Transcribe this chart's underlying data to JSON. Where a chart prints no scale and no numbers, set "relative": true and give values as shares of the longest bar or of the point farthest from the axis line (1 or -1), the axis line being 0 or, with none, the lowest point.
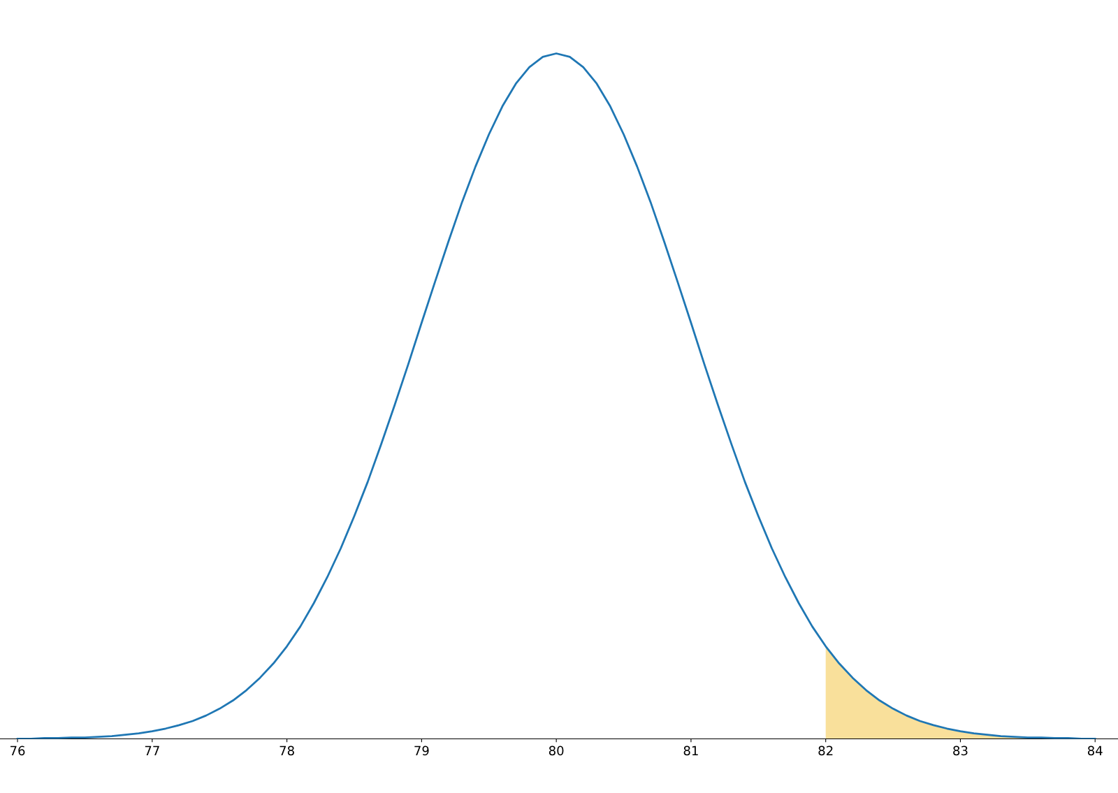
{
  "chart_data": {
    "type": "line",
    "relative": true,
    "xlim": [
      75.87,
      84.17
    ],
    "xticks": [
      76,
      77,
      78,
      79,
      80,
      81,
      82,
      83,
      84
    ],
    "grid": false,
    "legend": false,
    "series": [
      {
        "color": "#1f77b4",
        "x": [
          76,
          76.1,
          76.2,
          76.3,
          76.4,
          76.5,
          76.6,
          76.7,
          76.8,
          76.9,
          77,
          77.1,
          77.2,
          77.3,
          77.4,
          77.5,
          77.6,
          77.7,
          77.8,
          77.9,
          78,
          78.1,
          78.2,
          78.3,
          78.4,
          78.5,
          78.6,
          78.7,
          78.8,
          78.9,
          79,
          79.1,
          79.2,
          79.3,
          79.4,
          79.5,
          79.6,
          79.7,
          79.8,
          79.9,
          80,
          80.1,
          80.2,
          80.3,
          80.4,
          80.5,
          80.6,
          80.7,
          80.8,
          80.9,
          81,
          81.1,
          81.2,
          81.3,
          81.4,
          81.5,
          81.6,
          81.7,
          81.8,
          81.9,
          82,
          82.1,
          82.2,
          82.3,
          82.4,
          82.5,
          82.6,
          82.7,
          82.8,
          82.9,
          83,
          83.1,
          83.2,
          83.3,
          83.4,
          83.5,
          83.6,
          83.7,
          83.8,
          83.9,
          84
        ],
        "values": [
          0.0,
          0.0,
          0.001,
          0.001,
          0.002,
          0.002,
          0.003,
          0.004,
          0.006,
          0.008,
          0.011,
          0.015,
          0.02,
          0.026,
          0.034,
          0.044,
          0.056,
          0.071,
          0.089,
          0.11,
          0.135,
          0.164,
          0.198,
          0.236,
          0.278,
          0.325,
          0.375,
          0.43,
          0.487,
          0.546,
          0.607,
          0.667,
          0.726,
          0.783,
          0.835,
          0.882,
          0.923,
          0.956,
          0.98,
          0.995,
          1,
          0.995,
          0.98,
          0.956,
          0.923,
          0.882,
          0.835,
          0.783,
          0.726,
          0.667,
          0.607,
          0.546,
          0.487,
          0.43,
          0.375,
          0.325,
          0.278,
          0.236,
          0.198,
          0.164,
          0.135,
          0.11,
          0.089,
          0.071,
          0.056,
          0.044,
          0.034,
          0.026,
          0.02,
          0.015,
          0.011,
          0.008,
          0.006,
          0.004,
          0.003,
          0.002,
          0.002,
          0.001,
          0.001,
          0.0,
          0.0
        ]
      },
      {
        "type": "area",
        "color": "#f9e09b",
        "x": [
          82,
          82.1,
          82.2,
          82.3,
          82.4,
          82.5,
          82.6,
          82.7,
          82.8,
          82.9,
          83,
          83.1,
          83.2,
          83.3,
          83.4,
          83.5,
          83.6,
          83.7,
          83.8,
          83.9,
          84
        ],
        "values": [
          0.135,
          0.11,
          0.089,
          0.071,
          0.056,
          0.044,
          0.034,
          0.026,
          0.02,
          0.015,
          0.011,
          0.008,
          0.006,
          0.004,
          0.003,
          0.002,
          0.002,
          0.001,
          0.001,
          0.0,
          0.0
        ]
      }
    ]
  }
}
